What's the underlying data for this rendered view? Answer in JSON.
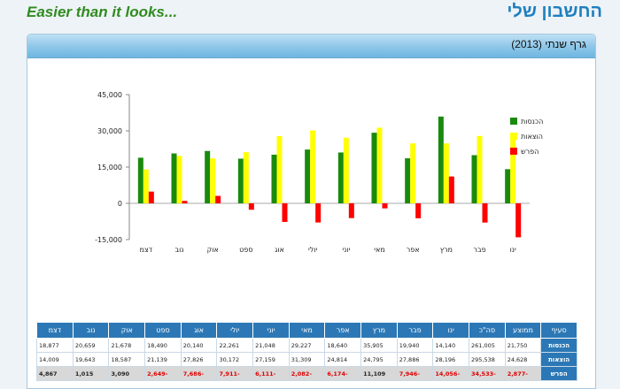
{
  "header": {
    "app_title": "החשבון שלי",
    "tagline": "Easier than it looks..."
  },
  "panel": {
    "title": "גרף שנתי (2013)"
  },
  "colors": {
    "income": "#1a8a0f",
    "expense": "#ffff00",
    "diff": "#ff0000",
    "header_blue": "#2c78b6"
  },
  "chart_data": {
    "type": "bar",
    "categories": [
      "ינו",
      "פבר",
      "מרץ",
      "אפר",
      "מאי",
      "יוני",
      "יולי",
      "אוג",
      "ספט",
      "אוק",
      "נוב",
      "דצמ"
    ],
    "series": [
      {
        "name": "הכנסות",
        "values": [
          14140,
          19940,
          35905,
          18640,
          29227,
          21048,
          22261,
          20140,
          18490,
          21678,
          20659,
          18877
        ]
      },
      {
        "name": "הוצאות",
        "values": [
          28196,
          27886,
          24795,
          24814,
          31309,
          27159,
          30172,
          27826,
          21139,
          18587,
          19643,
          14009
        ]
      },
      {
        "name": "הפרש",
        "values": [
          -14056,
          -7946,
          11109,
          -6174,
          -2082,
          -6111,
          -7911,
          -7686,
          -2649,
          3090,
          1015,
          4867
        ]
      }
    ],
    "yticks": [
      "45,000",
      "30,000",
      "15,000",
      "0",
      "-15,000"
    ],
    "ylim": [
      -15000,
      45000
    ],
    "grid": false,
    "legend_position": "top-right"
  },
  "table": {
    "headers": [
      "סעיף",
      "ממוצע",
      "סה\"כ",
      "ינו",
      "פבר",
      "מרץ",
      "אפר",
      "מאי",
      "יוני",
      "יולי",
      "אוג",
      "ספט",
      "אוק",
      "נוב",
      "דצמ"
    ],
    "rows": [
      {
        "label": "הכנסות",
        "cells": [
          "21,750",
          "261,005",
          "14,140",
          "19,940",
          "35,905",
          "18,640",
          "29,227",
          "21,048",
          "22,261",
          "20,140",
          "18,490",
          "21,678",
          "20,659",
          "18,877"
        ]
      },
      {
        "label": "הוצאות",
        "cells": [
          "24,628",
          "295,538",
          "28,196",
          "27,886",
          "24,795",
          "24,814",
          "31,309",
          "27,159",
          "30,172",
          "27,826",
          "21,139",
          "18,587",
          "19,643",
          "14,009"
        ]
      },
      {
        "label": "הפרש",
        "cells": [
          "-2,877",
          "-34,533",
          "-14,056",
          "-7,946",
          "11,109",
          "-6,174",
          "-2,082",
          "-6,111",
          "-7,911",
          "-7,686",
          "-2,649",
          "3,090",
          "1,015",
          "4,867"
        ]
      }
    ]
  }
}
